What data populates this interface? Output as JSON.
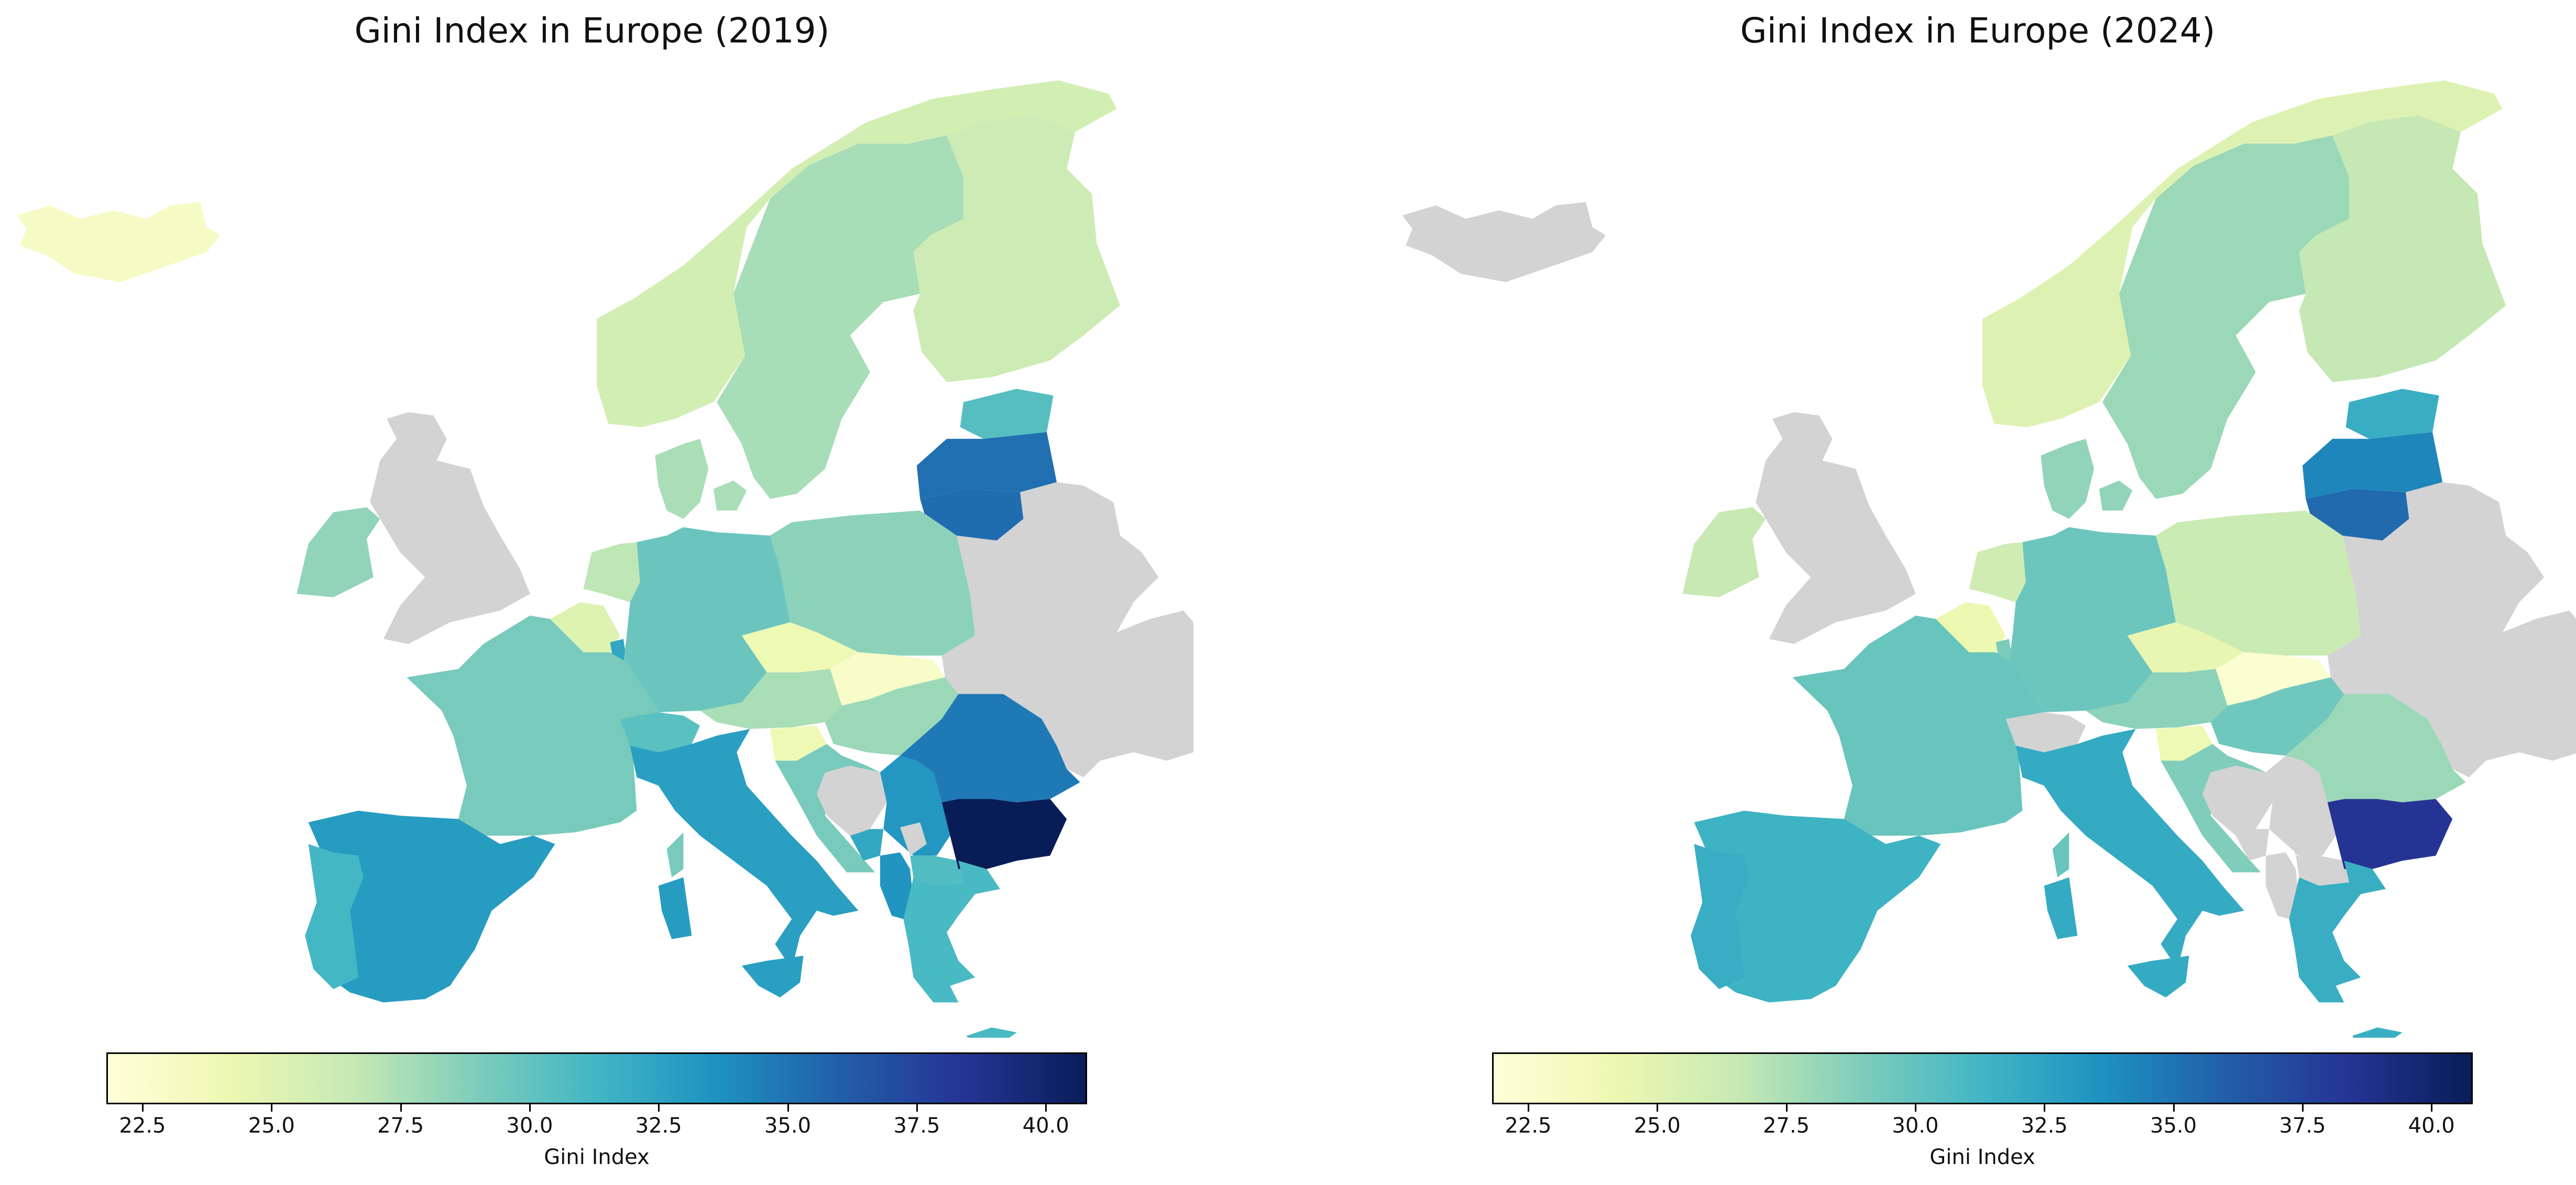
{
  "colorbar_range": [
    21.8,
    40.8
  ],
  "colorscale": [
    "#ffffd9",
    "#edf8b1",
    "#c7e9b4",
    "#7fcdbb",
    "#41b6c4",
    "#1d91c0",
    "#225ea8",
    "#253494",
    "#081d58"
  ],
  "no_data_color": "#d3d3d3",
  "maps": [
    {
      "title": "Gini Index in Europe (2019)",
      "colorbar": {
        "ticks": [
          "22.5",
          "25.0",
          "27.5",
          "30.0",
          "32.5",
          "35.0",
          "37.5",
          "40.0"
        ],
        "label": "Gini Index"
      },
      "values": {
        "Iceland": 23.0,
        "Norway": 25.8,
        "Sweden": 27.6,
        "Finland": 26.2,
        "Estonia": 30.5,
        "Latvia": 35.2,
        "Lithuania": 35.4,
        "Ireland": 28.3,
        "United Kingdom": null,
        "Denmark": 27.5,
        "Netherlands": 26.8,
        "Belgium": 25.1,
        "Luxembourg": 32.3,
        "Germany": 29.7,
        "Poland": 28.5,
        "Czechia": 24.0,
        "Slovakia": 22.8,
        "France": 29.2,
        "Switzerland": 30.3,
        "Austria": 27.5,
        "Hungary": 28.0,
        "Slovenia": 23.9,
        "Croatia": 29.2,
        "Bosnia and Herzegovina": null,
        "Serbia": 33.3,
        "Montenegro": 32.2,
        "Kosovo": null,
        "Albania": 33.4,
        "North Macedonia": 30.7,
        "Romania": 34.8,
        "Bulgaria": 40.8,
        "Greece": 31.0,
        "Spain": 33.0,
        "Portugal": 31.2,
        "Italy": 32.8,
        "Sardinia": 33.0,
        "Corsica": 29.2,
        "Sicily": 32.8,
        "Crete": 31.0,
        "Belarus": null,
        "Ukraine": null,
        "Moldova": null,
        "Russia": null
      }
    },
    {
      "title": "Gini Index in Europe (2024)",
      "colorbar": {
        "ticks": [
          "22.5",
          "25.0",
          "27.5",
          "30.0",
          "32.5",
          "35.0",
          "37.5",
          "40.0"
        ],
        "label": "Gini Index"
      },
      "values": {
        "Iceland": null,
        "Norway": 25.2,
        "Sweden": 28.0,
        "Finland": 26.6,
        "Estonia": 31.8,
        "Latvia": 34.2,
        "Lithuania": 35.5,
        "Ireland": 26.5,
        "United Kingdom": null,
        "Denmark": 28.3,
        "Netherlands": 26.0,
        "Belgium": 24.2,
        "Luxembourg": 29.0,
        "Germany": 29.6,
        "Poland": 26.3,
        "Czechia": 24.5,
        "Slovakia": 22.3,
        "France": 29.8,
        "Switzerland": null,
        "Austria": 28.5,
        "Hungary": 29.5,
        "Slovenia": 24.0,
        "Croatia": 28.9,
        "Bosnia and Herzegovina": null,
        "Serbia": null,
        "Montenegro": null,
        "Kosovo": null,
        "Albania": null,
        "North Macedonia": null,
        "Romania": 28.0,
        "Bulgaria": 38.4,
        "Greece": 31.8,
        "Spain": 31.5,
        "Portugal": 31.9,
        "Italy": 32.1,
        "Sardinia": 32.1,
        "Corsica": 29.8,
        "Sicily": 32.1,
        "Crete": 31.8,
        "Belarus": null,
        "Ukraine": null,
        "Moldova": null,
        "Russia": null
      }
    }
  ]
}
